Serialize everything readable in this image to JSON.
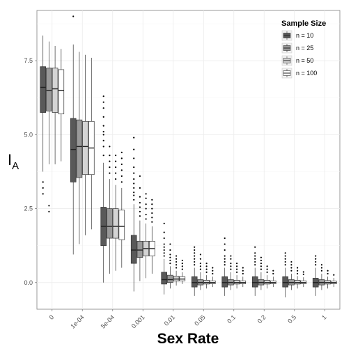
{
  "chart_data": {
    "type": "boxplot",
    "xlabel": "Sex Rate",
    "ylabel": "I",
    "ylabel_subscript": "A",
    "ylim": [
      -0.9,
      9.2
    ],
    "yticks": [
      0.0,
      2.5,
      5.0,
      7.5
    ],
    "ytick_labels": [
      "0.0",
      "2.5",
      "5.0",
      "7.5"
    ],
    "categories": [
      "0",
      "1e-04",
      "5e-04",
      "0.001",
      "0.01",
      "0.05",
      "0.1",
      "0.2",
      "0.5",
      "1"
    ],
    "grid": true,
    "legend": {
      "title": "Sample Size",
      "position": "top-right"
    },
    "series": [
      {
        "name": "n = 10",
        "color": "#595959",
        "boxes": [
          {
            "min": 3.75,
            "q1": 5.75,
            "median": 6.6,
            "q3": 7.3,
            "max": 8.35,
            "outliers": [
              3.4,
              3.2,
              3.0
            ]
          },
          {
            "min": 0.95,
            "q1": 3.4,
            "median": 4.5,
            "q3": 5.55,
            "max": 8.05,
            "outliers": [
              9.0
            ]
          },
          {
            "min": 0.0,
            "q1": 1.25,
            "median": 1.9,
            "q3": 2.55,
            "max": 4.05,
            "outliers": [
              4.3,
              4.6,
              4.8,
              5.0,
              5.1,
              5.3,
              5.6,
              5.9,
              6.1,
              6.3
            ]
          },
          {
            "min": -0.3,
            "q1": 0.65,
            "median": 1.1,
            "q3": 1.6,
            "max": 2.65,
            "outliers": [
              2.8,
              2.95,
              3.05,
              3.2,
              3.35,
              3.5,
              3.7,
              3.9,
              4.2,
              4.5,
              4.9
            ]
          },
          {
            "min": -0.4,
            "q1": -0.05,
            "median": 0.1,
            "q3": 0.35,
            "max": 0.8,
            "outliers": [
              0.9,
              1.0,
              1.1,
              1.2,
              1.3,
              1.5,
              1.7,
              2.0
            ]
          },
          {
            "min": -0.45,
            "q1": -0.15,
            "median": 0.0,
            "q3": 0.2,
            "max": 0.5,
            "outliers": [
              0.6,
              0.7,
              0.8,
              0.9,
              1.0,
              1.1,
              1.2
            ]
          },
          {
            "min": -0.45,
            "q1": -0.15,
            "median": 0.0,
            "q3": 0.2,
            "max": 0.5,
            "outliers": [
              0.6,
              0.7,
              0.8,
              0.9,
              1.1,
              1.3,
              1.5
            ]
          },
          {
            "min": -0.45,
            "q1": -0.15,
            "median": 0.0,
            "q3": 0.2,
            "max": 0.5,
            "outliers": [
              0.6,
              0.7,
              0.8,
              0.9,
              1.0,
              1.2
            ]
          },
          {
            "min": -0.5,
            "q1": -0.15,
            "median": 0.0,
            "q3": 0.2,
            "max": 0.5,
            "outliers": [
              0.6,
              0.7,
              0.8,
              0.9,
              1.0
            ]
          },
          {
            "min": -0.45,
            "q1": -0.15,
            "median": 0.0,
            "q3": 0.15,
            "max": 0.5,
            "outliers": [
              0.6,
              0.7,
              0.8,
              0.9
            ]
          }
        ]
      },
      {
        "name": "n = 25",
        "color": "#999999",
        "boxes": [
          {
            "min": 4.0,
            "q1": 5.8,
            "median": 6.5,
            "q3": 7.25,
            "max": 8.15,
            "outliers": [
              2.6,
              2.4
            ]
          },
          {
            "min": 1.3,
            "q1": 3.55,
            "median": 4.6,
            "q3": 5.5,
            "max": 7.8,
            "outliers": []
          },
          {
            "min": 0.3,
            "q1": 1.5,
            "median": 1.9,
            "q3": 2.5,
            "max": 3.5,
            "outliers": [
              3.7,
              3.9,
              4.1,
              4.3,
              4.6
            ]
          },
          {
            "min": 0.05,
            "q1": 0.85,
            "median": 1.1,
            "q3": 1.4,
            "max": 2.1,
            "outliers": [
              2.25,
              2.4,
              2.55,
              2.7,
              2.9,
              3.2,
              3.6
            ]
          },
          {
            "min": -0.2,
            "q1": 0.0,
            "median": 0.1,
            "q3": 0.25,
            "max": 0.55,
            "outliers": [
              0.65,
              0.75,
              0.85,
              0.95,
              1.1,
              1.3
            ]
          },
          {
            "min": -0.25,
            "q1": -0.08,
            "median": 0.0,
            "q3": 0.1,
            "max": 0.35,
            "outliers": [
              0.45,
              0.55,
              0.65,
              0.8,
              0.95
            ]
          },
          {
            "min": -0.25,
            "q1": -0.08,
            "median": 0.0,
            "q3": 0.1,
            "max": 0.35,
            "outliers": [
              0.45,
              0.55,
              0.65,
              0.8,
              0.9
            ]
          },
          {
            "min": -0.25,
            "q1": -0.08,
            "median": 0.0,
            "q3": 0.1,
            "max": 0.35,
            "outliers": [
              0.45,
              0.55,
              0.65,
              0.75,
              0.85
            ]
          },
          {
            "min": -0.25,
            "q1": -0.08,
            "median": 0.0,
            "q3": 0.1,
            "max": 0.3,
            "outliers": [
              0.4,
              0.5,
              0.6,
              0.7
            ]
          },
          {
            "min": -0.25,
            "q1": -0.08,
            "median": 0.0,
            "q3": 0.1,
            "max": 0.3,
            "outliers": [
              0.4,
              0.5,
              0.6
            ]
          }
        ]
      },
      {
        "name": "n = 50",
        "color": "#d4d4d4",
        "boxes": [
          {
            "min": 4.0,
            "q1": 5.75,
            "median": 6.55,
            "q3": 7.25,
            "max": 8.0,
            "outliers": []
          },
          {
            "min": 1.6,
            "q1": 3.65,
            "median": 4.6,
            "q3": 5.45,
            "max": 7.7,
            "outliers": []
          },
          {
            "min": 0.4,
            "q1": 1.5,
            "median": 1.9,
            "q3": 2.5,
            "max": 3.3,
            "outliers": [
              3.5,
              3.7,
              3.9,
              4.1,
              4.3
            ]
          },
          {
            "min": 0.15,
            "q1": 0.9,
            "median": 1.15,
            "q3": 1.4,
            "max": 2.0,
            "outliers": [
              2.15,
              2.3,
              2.5,
              2.65,
              2.85,
              3.0
            ]
          },
          {
            "min": -0.1,
            "q1": 0.05,
            "median": 0.12,
            "q3": 0.22,
            "max": 0.4,
            "outliers": [
              0.5,
              0.6,
              0.7,
              0.8,
              0.9
            ]
          },
          {
            "min": -0.2,
            "q1": -0.05,
            "median": 0.0,
            "q3": 0.08,
            "max": 0.25,
            "outliers": [
              0.35,
              0.45,
              0.55,
              0.65
            ]
          },
          {
            "min": -0.2,
            "q1": -0.05,
            "median": 0.0,
            "q3": 0.08,
            "max": 0.25,
            "outliers": [
              0.35,
              0.45,
              0.55,
              0.65
            ]
          },
          {
            "min": -0.2,
            "q1": -0.05,
            "median": 0.0,
            "q3": 0.08,
            "max": 0.25,
            "outliers": [
              0.35,
              0.45,
              0.55
            ]
          },
          {
            "min": -0.2,
            "q1": -0.05,
            "median": 0.0,
            "q3": 0.08,
            "max": 0.22,
            "outliers": [
              0.3,
              0.4,
              0.5
            ]
          },
          {
            "min": -0.2,
            "q1": -0.05,
            "median": 0.0,
            "q3": 0.07,
            "max": 0.2,
            "outliers": [
              0.3,
              0.4
            ]
          }
        ]
      },
      {
        "name": "n = 100",
        "color": "#ffffff",
        "boxes": [
          {
            "min": 4.1,
            "q1": 5.7,
            "median": 6.5,
            "q3": 7.2,
            "max": 7.9,
            "outliers": []
          },
          {
            "min": 1.8,
            "q1": 3.65,
            "median": 4.55,
            "q3": 5.45,
            "max": 7.6,
            "outliers": []
          },
          {
            "min": 0.5,
            "q1": 1.45,
            "median": 1.9,
            "q3": 2.45,
            "max": 3.2,
            "outliers": [
              3.4,
              3.6,
              3.8,
              4.0,
              4.2,
              4.4
            ]
          },
          {
            "min": 0.3,
            "q1": 0.9,
            "median": 1.15,
            "q3": 1.4,
            "max": 1.9,
            "outliers": [
              2.05,
              2.2,
              2.35,
              2.5,
              2.65,
              2.8
            ]
          },
          {
            "min": -0.05,
            "q1": 0.06,
            "median": 0.12,
            "q3": 0.2,
            "max": 0.35,
            "outliers": [
              0.45,
              0.55,
              0.65,
              0.75
            ]
          },
          {
            "min": -0.15,
            "q1": -0.04,
            "median": 0.0,
            "q3": 0.06,
            "max": 0.2,
            "outliers": [
              0.3,
              0.4,
              0.5
            ]
          },
          {
            "min": -0.15,
            "q1": -0.04,
            "median": 0.0,
            "q3": 0.06,
            "max": 0.2,
            "outliers": [
              0.3,
              0.4,
              0.5
            ]
          },
          {
            "min": -0.15,
            "q1": -0.04,
            "median": 0.0,
            "q3": 0.06,
            "max": 0.2,
            "outliers": [
              0.3,
              0.4
            ]
          },
          {
            "min": -0.15,
            "q1": -0.04,
            "median": 0.0,
            "q3": 0.06,
            "max": 0.18,
            "outliers": [
              0.28,
              0.36
            ]
          },
          {
            "min": -0.15,
            "q1": -0.04,
            "median": 0.0,
            "q3": 0.05,
            "max": 0.16,
            "outliers": [
              0.26
            ]
          }
        ]
      }
    ]
  }
}
